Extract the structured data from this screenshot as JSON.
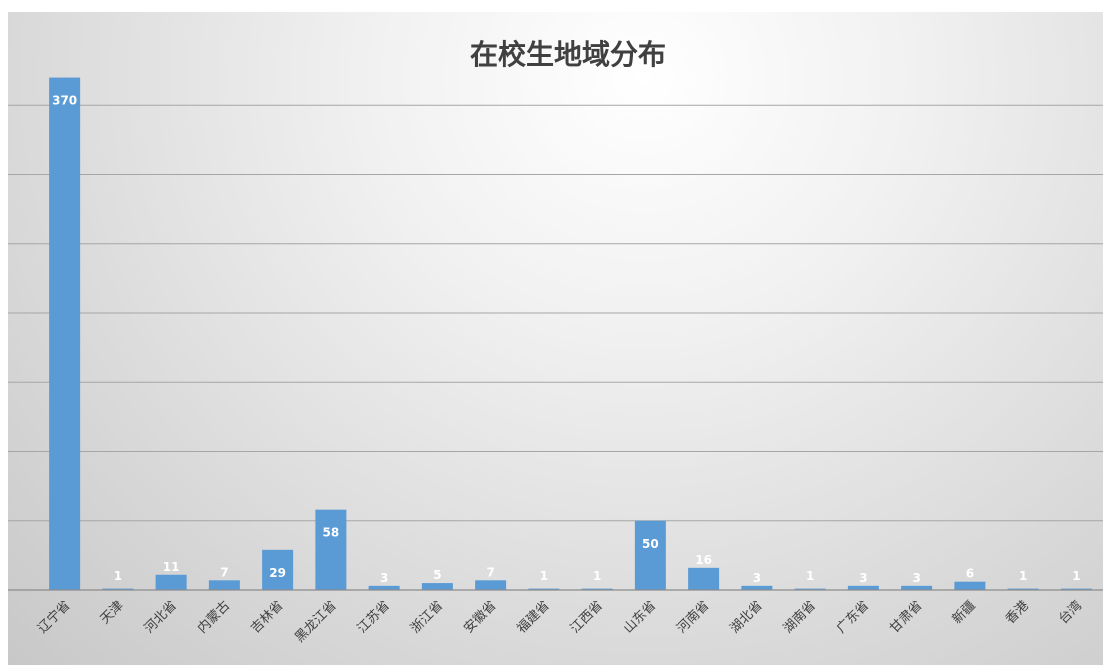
{
  "chart_data": {
    "type": "bar",
    "title": "在校生地域分布",
    "xlabel": "",
    "ylabel": "",
    "categories": [
      "辽宁省",
      "天津",
      "河北省",
      "内蒙古",
      "吉林省",
      "黑龙江省",
      "江苏省",
      "浙江省",
      "安徽省",
      "福建省",
      "江西省",
      "山东省",
      "河南省",
      "湖北省",
      "湖南省",
      "广东省",
      "甘肃省",
      "新疆",
      "香港",
      "台湾"
    ],
    "values": [
      370,
      1,
      11,
      7,
      29,
      58,
      3,
      5,
      7,
      1,
      1,
      50,
      16,
      3,
      1,
      3,
      3,
      6,
      1,
      1
    ],
    "ylim": [
      0,
      400
    ],
    "grid": true,
    "bar_color": "#5b9bd5",
    "label_color": "#ffffff",
    "legend": "none"
  }
}
